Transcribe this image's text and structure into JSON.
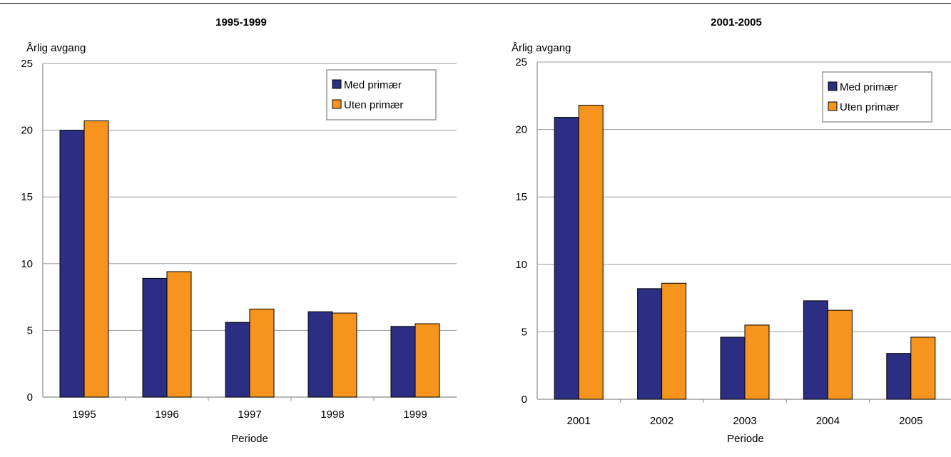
{
  "chart_data": [
    {
      "type": "bar",
      "title": "1995-1999",
      "ylabel": "Årlig avgang",
      "xlabel": "Periode",
      "ylim": [
        0,
        25
      ],
      "yticks": [
        0,
        5,
        10,
        15,
        20,
        25
      ],
      "grid": true,
      "legend_position": "top-right",
      "categories": [
        "1995",
        "1996",
        "1997",
        "1998",
        "1999"
      ],
      "series": [
        {
          "name": "Med primær",
          "color": "#2b2e82",
          "values": [
            20.0,
            8.9,
            5.6,
            6.4,
            5.3
          ]
        },
        {
          "name": "Uten primær",
          "color": "#f7941d",
          "values": [
            20.7,
            9.4,
            6.6,
            6.3,
            5.5
          ]
        }
      ]
    },
    {
      "type": "bar",
      "title": "2001-2005",
      "ylabel": "Årlig avgang",
      "xlabel": "Periode",
      "ylim": [
        0,
        25
      ],
      "yticks": [
        0,
        5,
        10,
        15,
        20,
        25
      ],
      "grid": true,
      "legend_position": "top-right",
      "categories": [
        "2001",
        "2002",
        "2003",
        "2004",
        "2005"
      ],
      "series": [
        {
          "name": "Med primær",
          "color": "#2b2e82",
          "values": [
            20.9,
            8.2,
            4.6,
            7.3,
            3.4
          ]
        },
        {
          "name": "Uten primær",
          "color": "#f7941d",
          "values": [
            21.8,
            8.6,
            5.5,
            6.6,
            4.6
          ]
        }
      ]
    }
  ]
}
